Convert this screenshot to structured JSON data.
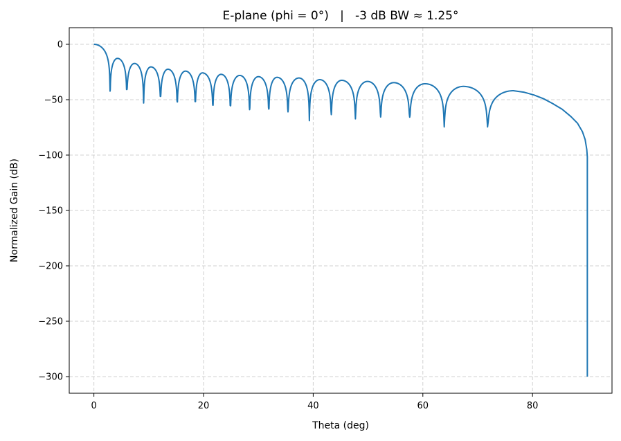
{
  "chart_data": {
    "type": "line",
    "title": "E-plane (phi = 0°)   |   -3 dB BW ≈ 1.25°",
    "xlabel": "Theta (deg)",
    "ylabel": "Normalized Gain (dB)",
    "xlim": [
      -4.5,
      94.5
    ],
    "ylim": [
      -315,
      15
    ],
    "xticks": [
      0,
      20,
      40,
      60,
      80
    ],
    "xtick_labels": [
      "0",
      "20",
      "40",
      "60",
      "80"
    ],
    "yticks": [
      0,
      -50,
      -100,
      -150,
      -200,
      -250,
      -300
    ],
    "ytick_labels": [
      "0",
      "−50",
      "−100",
      "−150",
      "−200",
      "−250",
      "−300"
    ],
    "grid": true,
    "grid_style": "dashed",
    "legend": "none",
    "series": [
      {
        "color": "#1f77b4",
        "points": [
          [
            0,
            0
          ],
          [
            2.95,
            -42.3
          ],
          [
            4.3,
            -12.7
          ],
          [
            6.0,
            -40.8
          ],
          [
            7.4,
            -17.3
          ],
          [
            9.07,
            -53
          ],
          [
            10.4,
            -20.4
          ],
          [
            12.15,
            -47
          ],
          [
            13.5,
            -22.5
          ],
          [
            15.2,
            -52
          ],
          [
            16.7,
            -24.2
          ],
          [
            18.5,
            -51.7
          ],
          [
            19.8,
            -25.8
          ],
          [
            21.7,
            -55
          ],
          [
            23.2,
            -27.1
          ],
          [
            24.9,
            -55.5
          ],
          [
            26.6,
            -28.1
          ],
          [
            28.4,
            -59
          ],
          [
            30.0,
            -29.2
          ],
          [
            31.9,
            -58.5
          ],
          [
            33.4,
            -29.8
          ],
          [
            35.4,
            -61
          ],
          [
            37.4,
            -30.4
          ],
          [
            39.3,
            -69
          ],
          [
            41.2,
            -31.9
          ],
          [
            43.3,
            -63.5
          ],
          [
            45.2,
            -32.5
          ],
          [
            47.7,
            -67.3
          ],
          [
            49.9,
            -33.5
          ],
          [
            52.3,
            -65.6
          ],
          [
            54.7,
            -34.6
          ],
          [
            57.6,
            -65.8
          ],
          [
            60.4,
            -35.6
          ],
          [
            63.9,
            -74.6
          ],
          [
            67.4,
            -38
          ],
          [
            71.8,
            -74.6
          ],
          [
            76.5,
            -41.9
          ],
          [
            78.5,
            -43.3
          ],
          [
            80.3,
            -45.8
          ],
          [
            82.0,
            -49.1
          ],
          [
            83.6,
            -53.3
          ],
          [
            85.4,
            -58.6
          ],
          [
            87.0,
            -65.2
          ],
          [
            88.2,
            -71.2
          ],
          [
            89.1,
            -78.8
          ],
          [
            89.6,
            -86
          ],
          [
            89.9,
            -95
          ],
          [
            90.0,
            -101.7
          ],
          [
            90.0,
            -300
          ]
        ]
      }
    ]
  }
}
